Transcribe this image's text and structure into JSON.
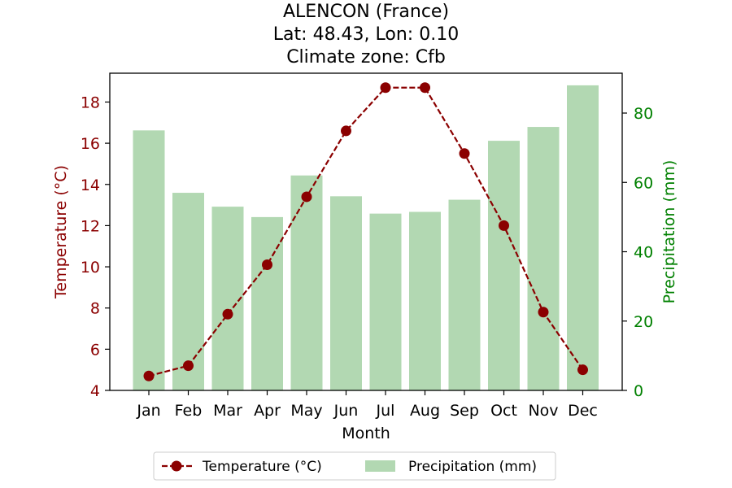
{
  "chart_data": {
    "type": "bar+line",
    "title_lines": [
      "ALENCON (France)",
      "Lat: 48.43, Lon: 0.10",
      "Climate zone: Cfb"
    ],
    "xlabel": "Month",
    "ylabel_left": "Temperature (°C)",
    "ylabel_right": "Precipitation (mm)",
    "categories": [
      "Jan",
      "Feb",
      "Mar",
      "Apr",
      "May",
      "Jun",
      "Jul",
      "Aug",
      "Sep",
      "Oct",
      "Nov",
      "Dec"
    ],
    "temperature": {
      "name": "Temperature (°C)",
      "values": [
        4.7,
        5.2,
        7.7,
        10.1,
        13.4,
        16.6,
        18.7,
        18.7,
        15.5,
        12.0,
        7.8,
        5.0
      ],
      "color": "#8b0000"
    },
    "precipitation": {
      "name": "Precipitation (mm)",
      "values": [
        75,
        57,
        53,
        50,
        62,
        56,
        51,
        51.5,
        55,
        72,
        76,
        88
      ],
      "color": "#b2d8b2"
    },
    "ylim_left": [
      4,
      19.4
    ],
    "yticks_left": [
      4,
      6,
      8,
      10,
      12,
      14,
      16,
      18
    ],
    "ylim_right": [
      0,
      91.5
    ],
    "yticks_right": [
      0,
      20,
      40,
      60,
      80
    ],
    "left_axis_color": "#8b0000",
    "right_axis_color": "#008000",
    "legend_position": "bottom-center"
  }
}
